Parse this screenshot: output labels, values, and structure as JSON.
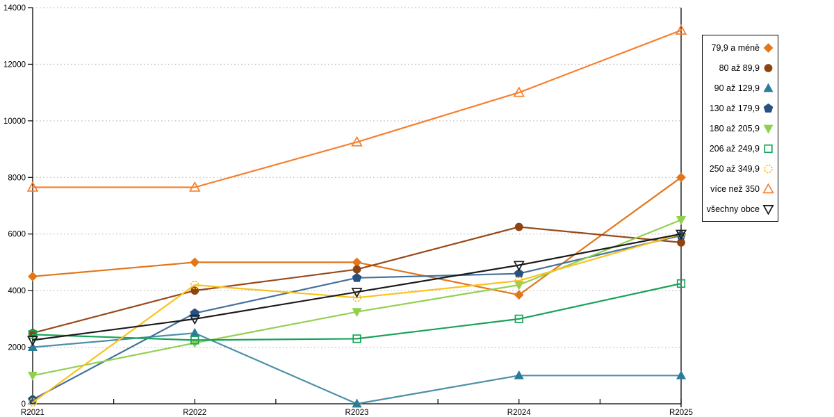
{
  "chart_data": {
    "type": "line",
    "title": "",
    "xlabel": "",
    "ylabel": "",
    "background": "#FFFFFF",
    "grid": "horizontal-dashed",
    "grid_color": "#AFAFAF",
    "legend_position": "right-outside",
    "categories": [
      "R2021",
      "R2022",
      "R2023",
      "R2024",
      "R2025"
    ],
    "y_axis": {
      "min": 0,
      "max": 14000,
      "step": 2000,
      "tick_labels": [
        "0",
        "2000",
        "4000",
        "6000",
        "8000",
        "10000",
        "12000",
        "14000"
      ]
    },
    "series": [
      {
        "name": "79,9 a méně",
        "marker": "diamond",
        "fill_style": "filled",
        "color": "#E2761B",
        "line_color": "#E2761B",
        "values": [
          4500,
          5000,
          5000,
          3850,
          8000
        ]
      },
      {
        "name": "80 až 89,9",
        "marker": "circle",
        "fill_style": "filled",
        "color": "#8E4412",
        "line_color": "#96491A",
        "values": [
          2500,
          4000,
          4750,
          6250,
          5700
        ]
      },
      {
        "name": "90 až 129,9",
        "marker": "triangle-up",
        "fill_style": "filled",
        "color": "#2C7D99",
        "line_color": "#4B8FA8",
        "values": [
          2000,
          2500,
          0,
          1000,
          1000
        ]
      },
      {
        "name": "130 až 179,9",
        "marker": "pentagon",
        "fill_style": "filled",
        "color": "#27517E",
        "line_color": "#44709D",
        "values": [
          150,
          3200,
          4450,
          4600,
          5950
        ]
      },
      {
        "name": "180 až 205,9",
        "marker": "triangle-down",
        "fill_style": "filled",
        "color": "#8FD14F",
        "line_color": "#92D050",
        "values": [
          1000,
          2150,
          3250,
          4200,
          6500
        ]
      },
      {
        "name": "206 až 249,9",
        "marker": "square",
        "fill_style": "open",
        "color": "#17A357",
        "line_color": "#17A357",
        "values": [
          2450,
          2250,
          2300,
          3000,
          4250
        ]
      },
      {
        "name": "250 až 349,9",
        "marker": "circle",
        "fill_style": "open-dashed",
        "color": "#F5C21D",
        "line_color": "#FAC21D",
        "values": [
          50,
          4200,
          3750,
          4350,
          6000
        ]
      },
      {
        "name": "více než 350",
        "marker": "triangle-up",
        "fill_style": "open",
        "color": "#F87E2C",
        "line_color": "#F87E2C",
        "values": [
          7650,
          7650,
          9250,
          11000,
          13200
        ]
      },
      {
        "name": "všechny obce",
        "marker": "triangle-down",
        "fill_style": "open",
        "color": "#1A1A1A",
        "line_color": "#1A1A1A",
        "values": [
          2250,
          3000,
          3950,
          4900,
          6000
        ]
      }
    ]
  }
}
